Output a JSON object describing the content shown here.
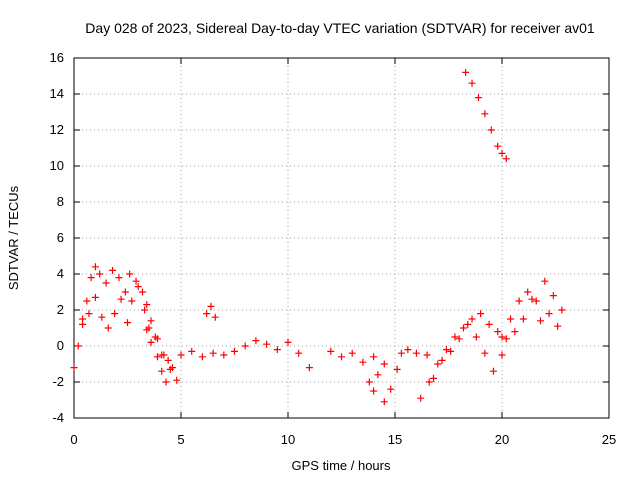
{
  "colors": {
    "series": "#ff0000",
    "grid": "#a0a0a0",
    "axis": "#000000",
    "background": "#ffffff"
  },
  "chart_data": {
    "type": "scatter",
    "title": "Day 028 of 2023, Sidereal Day-to-day VTEC variation (SDTVAR) for receiver av01",
    "xlabel": "GPS time / hours",
    "ylabel": "SDTVAR / TECUs",
    "xlim": [
      0,
      25
    ],
    "ylim": [
      -4,
      16
    ],
    "xticks": [
      0,
      5,
      10,
      15,
      20,
      25
    ],
    "xtick_labels": [
      "0",
      "5",
      "10",
      "15",
      "20",
      "25"
    ],
    "yticks": [
      -4,
      -2,
      0,
      2,
      4,
      6,
      8,
      10,
      12,
      14,
      16
    ],
    "ytick_labels": [
      "-4",
      "-2",
      "0",
      "2",
      "4",
      "6",
      "8",
      "10",
      "12",
      "14",
      "16"
    ],
    "grid": true,
    "marker": "plus",
    "series": [
      {
        "name": "SDTVAR",
        "tracks": [
          {
            "x": [
              0.0,
              0.2,
              0.4,
              0.6,
              0.8,
              1.0,
              1.2,
              1.5,
              1.8,
              2.1,
              2.4,
              2.7,
              3.0,
              3.3,
              3.5,
              3.8,
              4.1,
              4.4,
              4.6,
              5.0,
              5.5,
              6.0,
              6.5,
              7.0,
              7.5,
              8.0,
              8.5,
              9.0,
              9.5,
              10.0,
              10.5,
              11.0
            ],
            "y": [
              -1.2,
              0.0,
              1.5,
              2.5,
              3.8,
              4.4,
              4.0,
              3.5,
              4.2,
              3.8,
              3.0,
              2.5,
              3.3,
              2.0,
              1.0,
              0.5,
              -0.5,
              -0.8,
              -1.2,
              -0.5,
              -0.3,
              -0.6,
              -0.4,
              -0.5,
              -0.3,
              0.0,
              0.3,
              0.1,
              -0.2,
              0.2,
              -0.4,
              -1.2
            ]
          },
          {
            "x": [
              0.4,
              0.7,
              1.0,
              1.3,
              1.6,
              1.9,
              2.2,
              2.5
            ],
            "y": [
              1.2,
              1.8,
              2.7,
              1.6,
              1.0,
              1.8,
              2.6,
              1.3
            ]
          },
          {
            "x": [
              2.6,
              2.9,
              3.2,
              3.4,
              3.6,
              3.9,
              4.2,
              4.5,
              4.8
            ],
            "y": [
              4.0,
              3.6,
              3.0,
              2.3,
              1.4,
              0.4,
              -0.5,
              -1.3,
              -1.9
            ]
          },
          {
            "x": [
              3.4,
              3.6,
              3.9,
              4.1,
              4.3
            ],
            "y": [
              0.9,
              0.2,
              -0.6,
              -1.4,
              -2.0
            ]
          },
          {
            "x": [
              6.2,
              6.4,
              6.6
            ],
            "y": [
              1.8,
              2.2,
              1.6
            ]
          },
          {
            "x": [
              12.0,
              12.5,
              13.0,
              13.5,
              14.0,
              14.5
            ],
            "y": [
              -0.3,
              -0.6,
              -0.4,
              -0.9,
              -0.6,
              -1.0
            ]
          },
          {
            "x": [
              13.8,
              14.0,
              14.2
            ],
            "y": [
              -2.0,
              -2.5,
              -1.6
            ]
          },
          {
            "x": [
              14.5,
              14.8,
              15.1,
              15.3,
              15.6,
              16.0,
              16.5
            ],
            "y": [
              -3.1,
              -2.4,
              -1.3,
              -0.4,
              -0.2,
              -0.4,
              -0.5
            ]
          },
          {
            "x": [
              16.2,
              16.6,
              17.0,
              17.4,
              17.8,
              18.2,
              18.6,
              19.0,
              19.4,
              19.8,
              20.2
            ],
            "y": [
              -2.9,
              -2.0,
              -1.0,
              -0.2,
              0.5,
              1.0,
              1.5,
              1.8,
              1.2,
              0.8,
              0.4
            ]
          },
          {
            "x": [
              16.8,
              17.2,
              17.6,
              18.0,
              18.4,
              18.8,
              19.2,
              19.6,
              20.0
            ],
            "y": [
              -1.8,
              -0.8,
              -0.3,
              0.4,
              1.2,
              0.5,
              -0.4,
              -1.4,
              -0.5
            ]
          },
          {
            "x": [
              20.0,
              20.4,
              20.8,
              21.2,
              21.6,
              22.0,
              22.4,
              22.8
            ],
            "y": [
              0.5,
              1.5,
              2.5,
              3.0,
              2.5,
              3.6,
              2.8,
              2.0
            ]
          },
          {
            "x": [
              20.6,
              21.0,
              21.4,
              21.8,
              22.2,
              22.6
            ],
            "y": [
              0.8,
              1.5,
              2.6,
              1.4,
              1.8,
              1.1
            ]
          },
          {
            "x": [
              18.3,
              18.6,
              18.9,
              19.2,
              19.5,
              19.8,
              20.0,
              20.2
            ],
            "y": [
              15.2,
              14.6,
              13.8,
              12.9,
              12.0,
              11.1,
              10.7,
              10.4
            ]
          }
        ]
      }
    ]
  }
}
